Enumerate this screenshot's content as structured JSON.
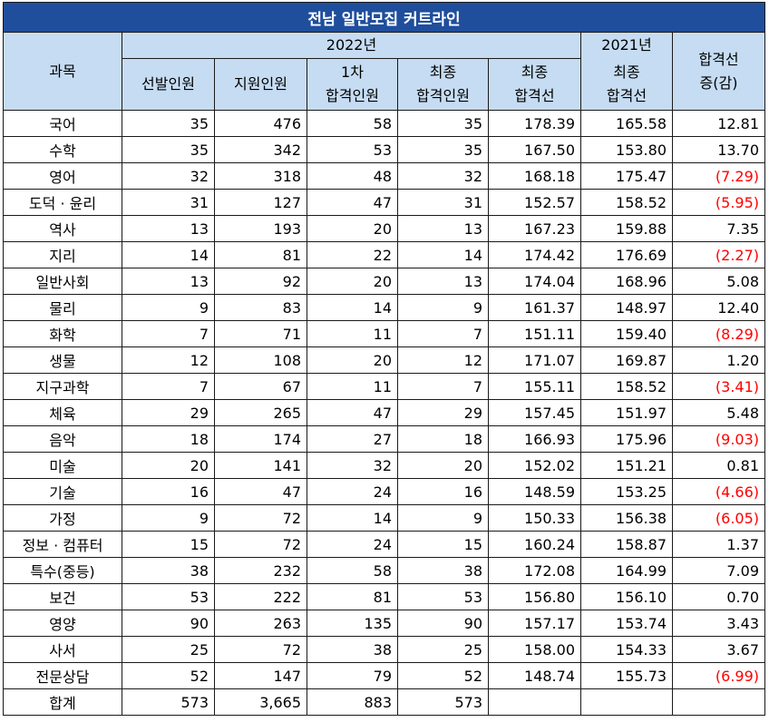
{
  "title": "전남 일반모집 커트라인",
  "headers": {
    "subject": "과목",
    "year_2022": "2022년",
    "year_2021": "2021년",
    "change_line1": "합격선",
    "change_line2": "증(감)",
    "selected": "선발인원",
    "applied": "지원인원",
    "first_pass_line1": "1차",
    "first_pass_line2": "합격인원",
    "final_pass_line1": "최종",
    "final_pass_line2": "합격인원",
    "final_cut_line1": "최종",
    "final_cut_line2": "합격선",
    "final_cut_2021_line1": "최종",
    "final_cut_2021_line2": "합격선"
  },
  "rows": [
    {
      "subject": "국어",
      "selected": "35",
      "applied": "476",
      "first": "58",
      "final": "35",
      "cut2022": "178.39",
      "cut2021": "165.58",
      "change": "12.81",
      "neg": false
    },
    {
      "subject": "수학",
      "selected": "35",
      "applied": "342",
      "first": "53",
      "final": "35",
      "cut2022": "167.50",
      "cut2021": "153.80",
      "change": "13.70",
      "neg": false
    },
    {
      "subject": "영어",
      "selected": "32",
      "applied": "318",
      "first": "48",
      "final": "32",
      "cut2022": "168.18",
      "cut2021": "175.47",
      "change": "(7.29)",
      "neg": true
    },
    {
      "subject": "도덕 · 윤리",
      "selected": "31",
      "applied": "127",
      "first": "47",
      "final": "31",
      "cut2022": "152.57",
      "cut2021": "158.52",
      "change": "(5.95)",
      "neg": true
    },
    {
      "subject": "역사",
      "selected": "13",
      "applied": "193",
      "first": "20",
      "final": "13",
      "cut2022": "167.23",
      "cut2021": "159.88",
      "change": "7.35",
      "neg": false
    },
    {
      "subject": "지리",
      "selected": "14",
      "applied": "81",
      "first": "22",
      "final": "14",
      "cut2022": "174.42",
      "cut2021": "176.69",
      "change": "(2.27)",
      "neg": true
    },
    {
      "subject": "일반사회",
      "selected": "13",
      "applied": "92",
      "first": "20",
      "final": "13",
      "cut2022": "174.04",
      "cut2021": "168.96",
      "change": "5.08",
      "neg": false
    },
    {
      "subject": "물리",
      "selected": "9",
      "applied": "83",
      "first": "14",
      "final": "9",
      "cut2022": "161.37",
      "cut2021": "148.97",
      "change": "12.40",
      "neg": false
    },
    {
      "subject": "화학",
      "selected": "7",
      "applied": "71",
      "first": "11",
      "final": "7",
      "cut2022": "151.11",
      "cut2021": "159.40",
      "change": "(8.29)",
      "neg": true
    },
    {
      "subject": "생물",
      "selected": "12",
      "applied": "108",
      "first": "20",
      "final": "12",
      "cut2022": "171.07",
      "cut2021": "169.87",
      "change": "1.20",
      "neg": false
    },
    {
      "subject": "지구과학",
      "selected": "7",
      "applied": "67",
      "first": "11",
      "final": "7",
      "cut2022": "155.11",
      "cut2021": "158.52",
      "change": "(3.41)",
      "neg": true
    },
    {
      "subject": "체육",
      "selected": "29",
      "applied": "265",
      "first": "47",
      "final": "29",
      "cut2022": "157.45",
      "cut2021": "151.97",
      "change": "5.48",
      "neg": false
    },
    {
      "subject": "음악",
      "selected": "18",
      "applied": "174",
      "first": "27",
      "final": "18",
      "cut2022": "166.93",
      "cut2021": "175.96",
      "change": "(9.03)",
      "neg": true
    },
    {
      "subject": "미술",
      "selected": "20",
      "applied": "141",
      "first": "32",
      "final": "20",
      "cut2022": "152.02",
      "cut2021": "151.21",
      "change": "0.81",
      "neg": false
    },
    {
      "subject": "기술",
      "selected": "16",
      "applied": "47",
      "first": "24",
      "final": "16",
      "cut2022": "148.59",
      "cut2021": "153.25",
      "change": "(4.66)",
      "neg": true
    },
    {
      "subject": "가정",
      "selected": "9",
      "applied": "72",
      "first": "14",
      "final": "9",
      "cut2022": "150.33",
      "cut2021": "156.38",
      "change": "(6.05)",
      "neg": true
    },
    {
      "subject": "정보 · 컴퓨터",
      "selected": "15",
      "applied": "72",
      "first": "24",
      "final": "15",
      "cut2022": "160.24",
      "cut2021": "158.87",
      "change": "1.37",
      "neg": false
    },
    {
      "subject": "특수(중등)",
      "selected": "38",
      "applied": "232",
      "first": "58",
      "final": "38",
      "cut2022": "172.08",
      "cut2021": "164.99",
      "change": "7.09",
      "neg": false
    },
    {
      "subject": "보건",
      "selected": "53",
      "applied": "222",
      "first": "81",
      "final": "53",
      "cut2022": "156.80",
      "cut2021": "156.10",
      "change": "0.70",
      "neg": false
    },
    {
      "subject": "영양",
      "selected": "90",
      "applied": "263",
      "first": "135",
      "final": "90",
      "cut2022": "157.17",
      "cut2021": "153.74",
      "change": "3.43",
      "neg": false
    },
    {
      "subject": "사서",
      "selected": "25",
      "applied": "72",
      "first": "38",
      "final": "25",
      "cut2022": "158.00",
      "cut2021": "154.33",
      "change": "3.67",
      "neg": false
    },
    {
      "subject": "전문상담",
      "selected": "52",
      "applied": "147",
      "first": "79",
      "final": "52",
      "cut2022": "148.74",
      "cut2021": "155.73",
      "change": "(6.99)",
      "neg": true
    },
    {
      "subject": "합계",
      "selected": "573",
      "applied": "3,665",
      "first": "883",
      "final": "573",
      "cut2022": "",
      "cut2021": "",
      "change": "",
      "neg": false
    }
  ]
}
